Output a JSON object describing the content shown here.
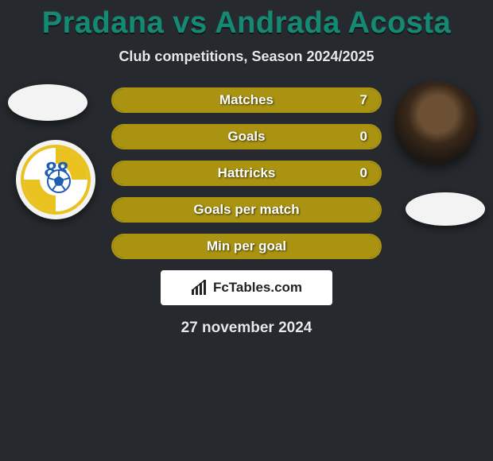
{
  "title": {
    "left": "Pradana",
    "vs": " vs ",
    "right": "Andrada Acosta"
  },
  "title_colors": {
    "left": "#128a74",
    "right": "#128a74",
    "vs": "#128a74"
  },
  "subtitle": "Club competitions, Season 2024/2025",
  "bars": {
    "border_color": "#a99311",
    "fill_color": "#a99311",
    "text_color": "#ffffff",
    "items": [
      {
        "label": "Matches",
        "value": "7",
        "fill_pct": 100
      },
      {
        "label": "Goals",
        "value": "0",
        "fill_pct": 100
      },
      {
        "label": "Hattricks",
        "value": "0",
        "fill_pct": 100
      },
      {
        "label": "Goals per match",
        "value": "",
        "fill_pct": 100
      },
      {
        "label": "Min per goal",
        "value": "",
        "fill_pct": 100
      }
    ]
  },
  "left_logo": {
    "number": "88",
    "number_color": "#1f5db5",
    "band_color": "#e9c21f",
    "ring_color": "#e9c21f"
  },
  "badge": {
    "text": "FcTables.com"
  },
  "date": "27 november 2024",
  "colors": {
    "background": "#262a2e",
    "subtitle": "#e8e8e8",
    "date": "#e8e8e8",
    "avatar_placeholder": "#f3f3f3"
  }
}
